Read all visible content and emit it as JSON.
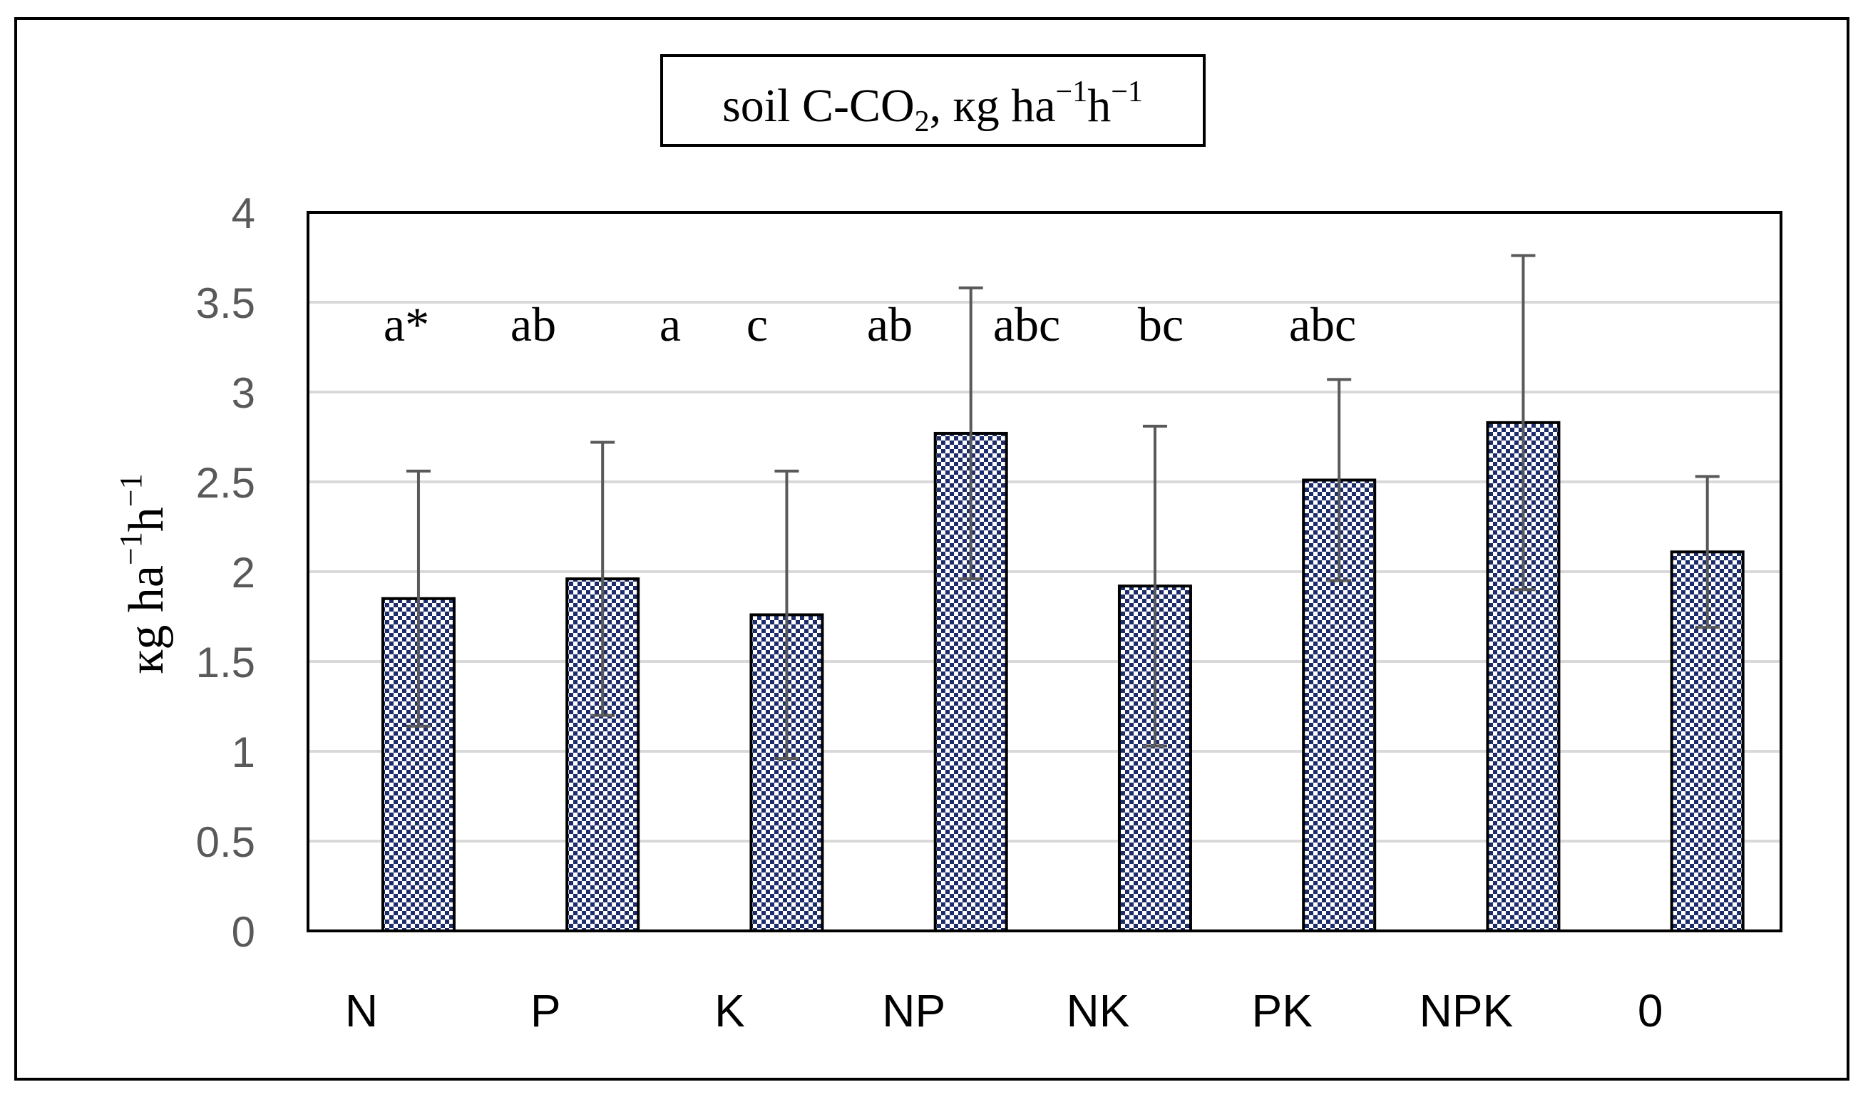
{
  "chart_data": {
    "type": "bar",
    "title": {
      "main": "soil C-CO",
      "sub": "2",
      "rest": ", кg ha",
      "sup1": "−1",
      "mid": "h",
      "sup2": "−1"
    },
    "ylabel": {
      "main": "кg ha",
      "sup1": "−1",
      "mid": "h",
      "sup2": "−1"
    },
    "xlabel": "",
    "categories": [
      "N",
      "P",
      "K",
      "NP",
      "NK",
      "PK",
      "NPK",
      "0"
    ],
    "values": [
      1.85,
      1.96,
      1.76,
      2.77,
      1.92,
      2.51,
      2.83,
      2.11
    ],
    "errors": [
      0.71,
      0.76,
      0.8,
      0.81,
      0.89,
      0.56,
      0.93,
      0.42
    ],
    "ylim": [
      0,
      4
    ],
    "yticks": [
      "0",
      "0.5",
      "1",
      "1.5",
      "2",
      "2.5",
      "3",
      "3.5",
      "4"
    ],
    "significance_labels": [
      "a*",
      "ab",
      "a",
      "c",
      "ab",
      "abc",
      "bc",
      "abc"
    ],
    "grid": true,
    "bar_fill": "navy checkered pattern",
    "colors": {
      "bar_dark": "#1d2c6b",
      "bar_light": "#ffffff",
      "bar_border": "#000000",
      "grid": "#d9d9d9",
      "error_bar": "#595959",
      "tick_text": "#595959"
    }
  }
}
